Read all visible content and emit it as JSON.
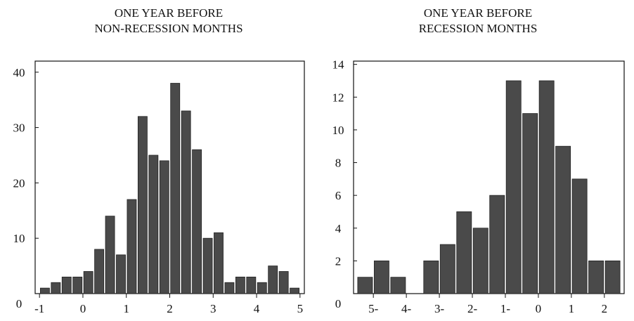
{
  "chart_data": [
    {
      "type": "bar",
      "title": [
        "ONE YEAR BEFORE",
        "NON-RECESSION MONTHS"
      ],
      "xlabel": "",
      "ylabel": "",
      "bin_width": 0.25,
      "bin_starts": [
        -1.0,
        -0.75,
        -0.5,
        -0.25,
        0.0,
        0.25,
        0.5,
        0.75,
        1.0,
        1.25,
        1.5,
        1.75,
        2.0,
        2.25,
        2.5,
        2.75,
        3.0,
        3.25,
        3.5,
        3.75,
        4.0,
        4.25,
        4.5,
        4.75
      ],
      "values": [
        1,
        2,
        3,
        3,
        4,
        8,
        14,
        7,
        17,
        32,
        25,
        24,
        38,
        33,
        26,
        10,
        11,
        2,
        3,
        3,
        2,
        5,
        4,
        1
      ],
      "xlim": [
        -1.1,
        5.1
      ],
      "ylim": [
        0,
        42
      ],
      "x_ticks": [
        -1,
        0,
        1,
        2,
        3,
        4,
        5
      ],
      "x_tick_labels": [
        "-1",
        "0",
        "1",
        "2",
        "3",
        "4",
        "5"
      ],
      "y_ticks": [
        0,
        10,
        20,
        30,
        40
      ],
      "y_tick_labels": [
        "0",
        "10",
        "20",
        "30",
        "40"
      ],
      "bar_color": "#4a4a4a"
    },
    {
      "type": "bar",
      "title": [
        "ONE YEAR BEFORE",
        "RECESSION MONTHS"
      ],
      "xlabel": "",
      "ylabel": "",
      "bin_width": 0.5,
      "bin_starts": [
        -5.5,
        -5.0,
        -4.5,
        -4.0,
        -3.5,
        -3.0,
        -2.5,
        -2.0,
        -1.5,
        -1.0,
        -0.5,
        0.0,
        0.5,
        1.0,
        1.5,
        2.0
      ],
      "values": [
        1,
        2,
        1,
        0,
        2,
        3,
        5,
        4,
        6,
        13,
        11,
        13,
        9,
        7,
        2,
        2
      ],
      "xlim": [
        -5.6,
        2.6
      ],
      "ylim": [
        0,
        14.2
      ],
      "x_ticks": [
        -5,
        -4,
        -3,
        -2,
        -1,
        0,
        1,
        2
      ],
      "x_tick_labels": [
        "5-",
        "4-",
        "3-",
        "2-",
        "1-",
        "0",
        "1",
        "2"
      ],
      "y_ticks": [
        0,
        2,
        4,
        6,
        8,
        10,
        12,
        14
      ],
      "y_tick_labels": [
        "0",
        "2",
        "4",
        "6",
        "8",
        "10",
        "12",
        "14"
      ],
      "bar_color": "#4a4a4a"
    }
  ]
}
